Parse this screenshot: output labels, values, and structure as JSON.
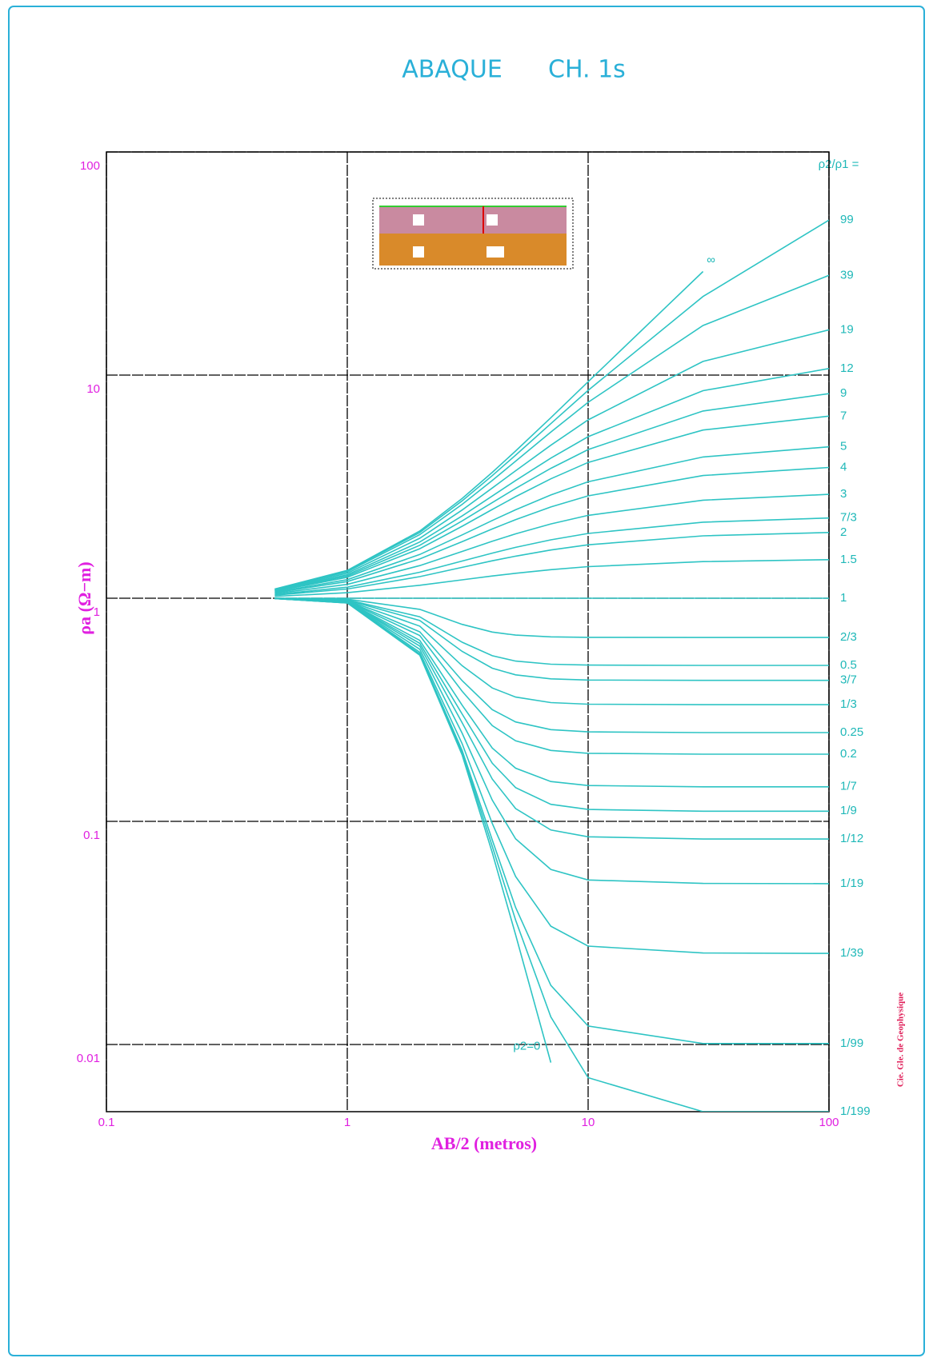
{
  "chart_data": {
    "type": "line",
    "title": "ABAQUE      CH. 1s",
    "x_label": "AB/2 (metros)",
    "y_label": "ρa (Ω−m)",
    "ratio_label": "ρ2/ρ1 =",
    "credit": "Cie. Gle. de Geophysique",
    "log_x": true,
    "log_y": true,
    "grid": true,
    "xlim": [
      0.1,
      100
    ],
    "ylim": [
      0.005,
      100
    ],
    "xticks": [
      0.1,
      1,
      10,
      100
    ],
    "yticks": [
      0.01,
      0.1,
      1,
      10,
      100
    ],
    "x": [
      0.5,
      1,
      2,
      3,
      4,
      5,
      7,
      10,
      30,
      100
    ],
    "series": [
      {
        "name": "∞",
        "color": "#2ec4c4",
        "values": [
          1.1,
          1.333,
          2.0,
          2.8,
          3.667,
          4.571,
          6.443,
          9.336,
          29.12,
          null
        ]
      },
      {
        "name": "99",
        "color": "#2ec4c4",
        "values": [
          1.098,
          1.326,
          1.97,
          2.733,
          3.545,
          4.379,
          6.06,
          8.542,
          22.5,
          49.5
        ]
      },
      {
        "name": "39",
        "color": "#2ec4c4",
        "values": [
          1.095,
          1.314,
          1.927,
          2.636,
          3.374,
          4.115,
          5.551,
          7.554,
          16.68,
          27.99
        ]
      },
      {
        "name": "19",
        "color": "#2ec4c4",
        "values": [
          1.089,
          1.295,
          1.857,
          2.486,
          3.118,
          3.727,
          4.851,
          6.297,
          11.52,
          15.95
        ]
      },
      {
        "name": "12",
        "color": "#2ec4c4",
        "values": [
          1.084,
          1.275,
          1.786,
          2.337,
          2.871,
          3.37,
          4.245,
          5.295,
          8.515,
          10.7
        ]
      },
      {
        "name": "9",
        "color": "#2ec4c4",
        "values": [
          1.079,
          1.258,
          1.727,
          2.221,
          2.684,
          3.105,
          3.819,
          4.637,
          6.902,
          8.259
        ]
      },
      {
        "name": "7",
        "color": "#2ec4c4",
        "values": [
          1.074,
          1.24,
          1.667,
          2.102,
          2.5,
          2.852,
          3.43,
          4.062,
          5.671,
          6.547
        ]
      },
      {
        "name": "5",
        "color": "#2ec4c4",
        "values": [
          1.065,
          1.211,
          1.571,
          1.923,
          2.231,
          2.492,
          2.902,
          3.326,
          4.297,
          4.769
        ]
      },
      {
        "name": "4",
        "color": "#2ec4c4",
        "values": [
          1.059,
          1.187,
          1.5,
          1.794,
          2.043,
          2.25,
          2.564,
          2.875,
          3.548,
          3.854
        ]
      },
      {
        "name": "3",
        "color": "#2ec4c4",
        "values": [
          1.049,
          1.154,
          1.4,
          1.621,
          1.8,
          1.943,
          2.153,
          2.351,
          2.751,
          2.922
        ]
      },
      {
        "name": "7/3",
        "color": "#2ec4c4",
        "values": [
          1.039,
          1.121,
          1.308,
          1.468,
          1.593,
          1.69,
          1.827,
          1.952,
          2.192,
          2.289
        ]
      },
      {
        "name": "2",
        "color": "#2ec4c4",
        "values": [
          1.032,
          1.1,
          1.25,
          1.375,
          1.471,
          1.544,
          1.645,
          1.735,
          1.904,
          1.97
        ]
      },
      {
        "name": "1.5",
        "color": "#2ec4c4",
        "values": [
          1.019,
          1.059,
          1.143,
          1.209,
          1.258,
          1.294,
          1.343,
          1.385,
          1.459,
          1.488
        ]
      },
      {
        "name": "1",
        "color": "#2ec4c4",
        "values": [
          1,
          1,
          1,
          1,
          1,
          1,
          1,
          1,
          1,
          1
        ]
      },
      {
        "name": "2/3",
        "color": "#2ec4c4",
        "values": [
          0.9994,
          0.9902,
          0.892,
          0.7638,
          0.7051,
          0.6835,
          0.6713,
          0.6678,
          0.6667,
          0.6667
        ]
      },
      {
        "name": "0.5",
        "color": "#2ec4c4",
        "values": [
          0.999,
          0.9839,
          0.8261,
          0.6352,
          0.5524,
          0.5228,
          0.5061,
          0.5015,
          0.5,
          0.5
        ]
      },
      {
        "name": "3/7",
        "color": "#2ec4c4",
        "values": [
          0.9988,
          0.9807,
          0.7949,
          0.5776,
          0.4859,
          0.4536,
          0.4354,
          0.4299,
          0.4286,
          0.4286
        ]
      },
      {
        "name": "1/3",
        "color": "#2ec4c4",
        "values": [
          0.9984,
          0.9759,
          0.75,
          0.4985,
          0.3963,
          0.3607,
          0.3406,
          0.3351,
          0.3333,
          0.3333
        ]
      },
      {
        "name": "0.25",
        "color": "#2ec4c4",
        "values": [
          0.9981,
          0.9712,
          0.7073,
          0.4269,
          0.3167,
          0.2789,
          0.2577,
          0.2519,
          0.25,
          0.25
        ]
      },
      {
        "name": "0.2",
        "color": "#2ec4c4",
        "values": [
          0.9979,
          0.9679,
          0.68,
          0.3827,
          0.2685,
          0.2296,
          0.208,
          0.2019,
          0.2,
          0.2
        ]
      },
      {
        "name": "1/7",
        "color": "#2ec4c4",
        "values": [
          0.9977,
          0.964,
          0.6471,
          0.3316,
          0.2131,
          0.1731,
          0.1509,
          0.1448,
          0.1429,
          0.1429
        ]
      },
      {
        "name": "1/9",
        "color": "#2ec4c4",
        "values": [
          0.9975,
          0.9617,
          0.6279,
          0.3025,
          0.1822,
          0.1417,
          0.1192,
          0.1131,
          0.1111,
          0.1111
        ]
      },
      {
        "name": "1/12",
        "color": "#2ec4c4",
        "values": [
          0.9974,
          0.9596,
          0.6106,
          0.2767,
          0.1548,
          0.1141,
          0.0915,
          0.0853,
          0.0833,
          0.0833
        ]
      },
      {
        "name": "1/19",
        "color": "#2ec4c4",
        "values": [
          0.9972,
          0.957,
          0.5909,
          0.2481,
          0.1246,
          0.0835,
          0.0609,
          0.0546,
          0.0527,
          0.0526
        ]
      },
      {
        "name": "1/39",
        "color": "#2ec4c4",
        "values": [
          0.997,
          0.9547,
          0.5731,
          0.2226,
          0.0979,
          0.0566,
          0.0339,
          0.0276,
          0.0257,
          0.0256
        ]
      },
      {
        "name": "1/99",
        "color": "#2ec4c4",
        "values": [
          0.9969,
          0.9533,
          0.5625,
          0.2077,
          0.0825,
          0.0411,
          0.0184,
          0.0121,
          0.0101,
          0.0101
        ]
      },
      {
        "name": "1/199",
        "color": "#2ec4c4",
        "values": [
          0.9969,
          0.9527,
          0.5591,
          0.2029,
          0.0774,
          0.0361,
          0.0133,
          0.0071,
          0.005,
          0.005
        ]
      },
      {
        "name": "ρ2=0",
        "color": "#2ec4c4",
        "values": [
          0.9969,
          0.9524,
          0.5556,
          0.1982,
          0.0724,
          0.031,
          0.0083,
          null,
          null,
          null
        ]
      }
    ]
  }
}
